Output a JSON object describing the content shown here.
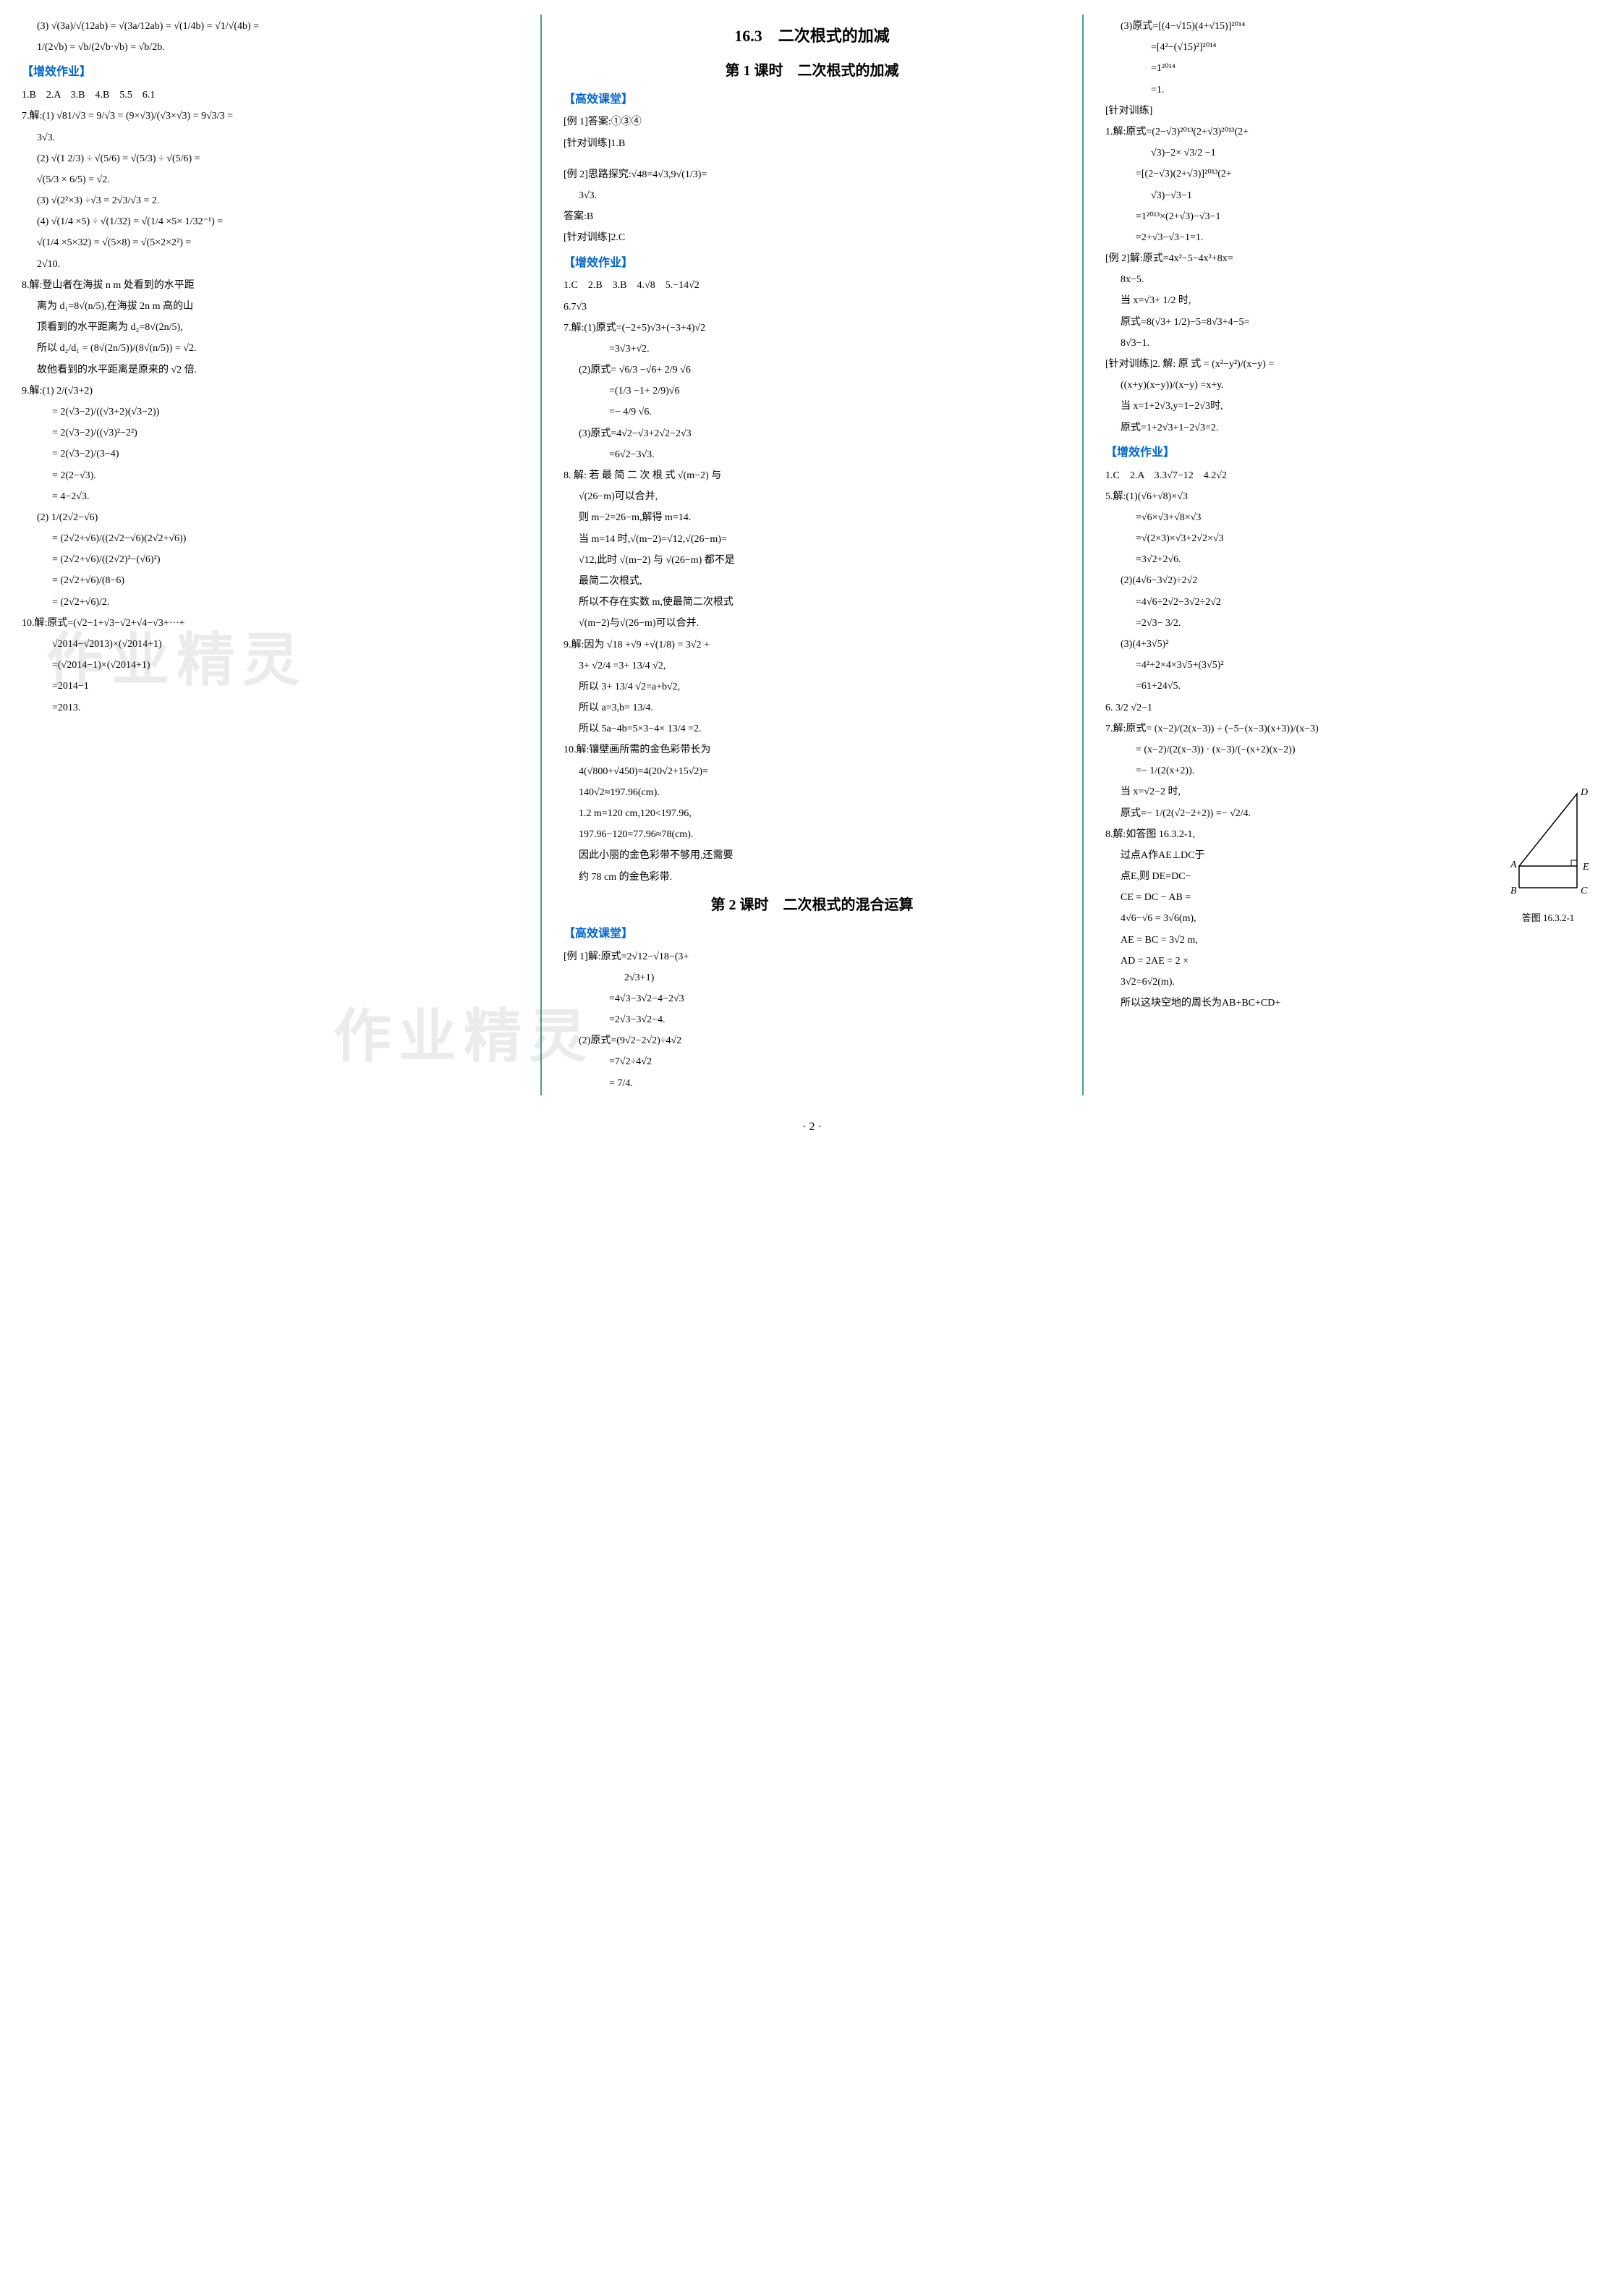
{
  "pageNumber": "· 2 ·",
  "watermarks": {
    "wm1": "作业精灵",
    "wm2": "作业精灵"
  },
  "column1": {
    "items": [
      {
        "text": "(3) √(3a)/√(12ab) = √(3a/12ab) = √(1/4b) = √1/√(4b) =",
        "indent": 1
      },
      {
        "text": "1/(2√b) = √b/(2√b·√b) = √b/2b.",
        "indent": 1
      },
      {
        "text": "【增效作业】",
        "class": "blue-heading"
      },
      {
        "text": "1.B　2.A　3.B　4.B　5.5　6.1",
        "class": "answer-line"
      },
      {
        "text": "7.解:(1) √81/√3 = 9/√3 = (9×√3)/(√3×√3) = 9√3/3 =",
        "class": "item"
      },
      {
        "text": "3√3.",
        "indent": 1
      },
      {
        "text": "(2) √(1 2/3) ÷ √(5/6) = √(5/3) ÷ √(5/6) =",
        "indent": 1
      },
      {
        "text": "√(5/3 × 6/5) = √2.",
        "indent": 1
      },
      {
        "text": "(3) √(2²×3) ÷√3 = 2√3/√3 = 2.",
        "indent": 1
      },
      {
        "text": "(4) √(1/4 ×5) ÷ √(1/32) = √(1/4 ×5× 1/32⁻¹) =",
        "indent": 1
      },
      {
        "text": "√(1/4 ×5×32) = √(5×8) = √(5×2×2²) =",
        "indent": 1
      },
      {
        "text": "2√10.",
        "indent": 1
      },
      {
        "text": "8.解:登山者在海拔 n m 处看到的水平距",
        "class": "item"
      },
      {
        "text": "离为 d₁=8√(n/5),在海拔 2n m 高的山",
        "indent": 1
      },
      {
        "text": "顶看到的水平距离为 d₂=8√(2n/5),",
        "indent": 1
      },
      {
        "text": "所以 d₂/d₁ = (8√(2n/5))/(8√(n/5)) = √2.",
        "indent": 1
      },
      {
        "text": "故他看到的水平距离是原来的 √2 倍.",
        "indent": 1
      },
      {
        "text": "9.解:(1) 2/(√3+2)",
        "class": "item"
      },
      {
        "text": "= 2(√3−2)/((√3+2)(√3−2))",
        "indent": 2
      },
      {
        "text": "= 2(√3−2)/((√3)²−2²)",
        "indent": 2
      },
      {
        "text": "= 2(√3−2)/(3−4)",
        "indent": 2
      },
      {
        "text": "= 2(2−√3).",
        "indent": 2
      },
      {
        "text": "= 4−2√3.",
        "indent": 2
      },
      {
        "text": "(2) 1/(2√2−√6)",
        "indent": 1
      },
      {
        "text": "= (2√2+√6)/((2√2−√6)(2√2+√6))",
        "indent": 2
      },
      {
        "text": "= (2√2+√6)/((2√2)²−(√6)²)",
        "indent": 2
      },
      {
        "text": "= (2√2+√6)/(8−6)",
        "indent": 2
      },
      {
        "text": "= (2√2+√6)/2.",
        "indent": 2
      },
      {
        "text": "10.解:原式=(√2−1+√3−√2+√4−√3+···+",
        "class": "item"
      },
      {
        "text": "√2014−√2013)×(√2014+1)",
        "indent": 2
      },
      {
        "text": "=(√2014−1)×(√2014+1)",
        "indent": 2
      },
      {
        "text": "=2014−1",
        "indent": 2
      },
      {
        "text": "=2013.",
        "indent": 2
      }
    ]
  },
  "column2": {
    "titleMajor": "16.3　二次根式的加减",
    "titleSub": "第 1 课时　二次根式的加减",
    "items": [
      {
        "text": "【高效课堂】",
        "class": "blue-heading"
      },
      {
        "text": "[例 1]答案:①③④",
        "class": "item"
      },
      {
        "text": "[针对训练]1.B",
        "class": "item"
      },
      {
        "text": "",
        "class": "spacer"
      },
      {
        "text": "[例 2]思路探究:√48=4√3,9√(1/3)=",
        "class": "item"
      },
      {
        "text": "3√3.",
        "indent": 1
      },
      {
        "text": "答案:B",
        "class": "item"
      },
      {
        "text": "[针对训练]2.C",
        "class": "item"
      },
      {
        "text": "【增效作业】",
        "class": "blue-heading"
      },
      {
        "text": "1.C　2.B　3.B　4.√8　5.−14√2",
        "class": "answer-line"
      },
      {
        "text": "6.7√3",
        "class": "answer-line"
      },
      {
        "text": "7.解:(1)原式=(−2+5)√3+(−3+4)√2",
        "class": "item"
      },
      {
        "text": "=3√3+√2.",
        "indent": 3
      },
      {
        "text": "(2)原式= √6/3 −√6+ 2/9 √6",
        "indent": 1
      },
      {
        "text": "=(1/3 −1+ 2/9)√6",
        "indent": 3
      },
      {
        "text": "=− 4/9 √6.",
        "indent": 3
      },
      {
        "text": "(3)原式=4√2−√3+2√2−2√3",
        "indent": 1
      },
      {
        "text": "=6√2−3√3.",
        "indent": 3
      },
      {
        "text": "8. 解: 若 最 简 二 次 根 式 √(m−2) 与",
        "class": "item"
      },
      {
        "text": "√(26−m)可以合并,",
        "indent": 1
      },
      {
        "text": "则 m−2=26−m,解得 m=14.",
        "indent": 1
      },
      {
        "text": "当 m=14 时,√(m−2)=√12,√(26−m)=",
        "indent": 1
      },
      {
        "text": "√12,此时 √(m−2) 与 √(26−m) 都不是",
        "indent": 1
      },
      {
        "text": "最简二次根式,",
        "indent": 1
      },
      {
        "text": "所以不存在实数 m,使最简二次根式",
        "indent": 1
      },
      {
        "text": "√(m−2)与√(26−m)可以合并.",
        "indent": 1
      },
      {
        "text": "9.解:因为 √18 +√9 +√(1/8) = 3√2 +",
        "class": "item"
      },
      {
        "text": "3+ √2/4 =3+ 13/4 √2,",
        "indent": 1
      },
      {
        "text": "所以 3+ 13/4 √2=a+b√2,",
        "indent": 1
      },
      {
        "text": "所以 a=3,b= 13/4.",
        "indent": 1
      },
      {
        "text": "所以 5a−4b=5×3−4× 13/4 =2.",
        "indent": 1
      },
      {
        "text": "10.解:镶壁画所需的金色彩带长为",
        "class": "item"
      },
      {
        "text": "4(√800+√450)=4(20√2+15√2)=",
        "indent": 1
      },
      {
        "text": "140√2≈197.96(cm).",
        "indent": 1
      },
      {
        "text": "1.2 m=120 cm,120<197.96,",
        "indent": 1
      },
      {
        "text": "197.96−120=77.96≈78(cm).",
        "indent": 1
      },
      {
        "text": "因此小丽的金色彩带不够用,还需要",
        "indent": 1
      },
      {
        "text": "约 78 cm 的金色彩带.",
        "indent": 1
      }
    ],
    "titleSub2": "第 2 课时　二次根式的混合运算",
    "items2": [
      {
        "text": "【高效课堂】",
        "class": "blue-heading"
      },
      {
        "text": "[例 1]解:原式=2√12−√18−(3+",
        "class": "item"
      },
      {
        "text": "2√3+1)",
        "indent": 4
      },
      {
        "text": "=4√3−3√2−4−2√3",
        "indent": 3
      },
      {
        "text": "=2√3−3√2−4.",
        "indent": 3
      },
      {
        "text": "(2)原式=(9√2−2√2)÷4√2",
        "indent": 1
      },
      {
        "text": "=7√2÷4√2",
        "indent": 3
      },
      {
        "text": "= 7/4.",
        "indent": 3
      }
    ]
  },
  "column3": {
    "items": [
      {
        "text": "(3)原式=[(4−√15)(4+√15)]²⁰¹⁴",
        "indent": 1
      },
      {
        "text": "=[4²−(√15)²]²⁰¹⁴",
        "indent": 3
      },
      {
        "text": "=1²⁰¹⁴",
        "indent": 3
      },
      {
        "text": "=1.",
        "indent": 3
      },
      {
        "text": "[针对训练]",
        "class": "item"
      },
      {
        "text": "1.解:原式=(2−√3)²⁰¹³(2+√3)²⁰¹³(2+",
        "class": "item"
      },
      {
        "text": "√3)−2× √3/2 −1",
        "indent": 3
      },
      {
        "text": "=[(2−√3)(2+√3)]²⁰¹³(2+",
        "indent": 2
      },
      {
        "text": "√3)−√3−1",
        "indent": 3
      },
      {
        "text": "=1²⁰¹³×(2+√3)−√3−1",
        "indent": 2
      },
      {
        "text": "=2+√3−√3−1=1.",
        "indent": 2
      },
      {
        "text": "[例 2]解:原式=4x²−5−4x²+8x=",
        "class": "item"
      },
      {
        "text": "8x−5.",
        "indent": 1
      },
      {
        "text": "当 x=√3+ 1/2 时,",
        "indent": 1
      },
      {
        "text": "原式=8(√3+ 1/2)−5=8√3+4−5=",
        "indent": 1
      },
      {
        "text": "8√3−1.",
        "indent": 1
      },
      {
        "text": "[针对训练]2. 解: 原 式 = (x²−y²)/(x−y) =",
        "class": "item"
      },
      {
        "text": "((x+y)(x−y))/(x−y) =x+y.",
        "indent": 1
      },
      {
        "text": "当 x=1+2√3,y=1−2√3时,",
        "indent": 1
      },
      {
        "text": "原式=1+2√3+1−2√3=2.",
        "indent": 1
      },
      {
        "text": "【增效作业】",
        "class": "blue-heading"
      },
      {
        "text": "1.C　2.A　3.3√7−12　4.2√2",
        "class": "answer-line"
      },
      {
        "text": "5.解:(1)(√6+√8)×√3",
        "class": "item"
      },
      {
        "text": "=√6×√3+√8×√3",
        "indent": 2
      },
      {
        "text": "=√(2×3)×√3+2√2×√3",
        "indent": 2
      },
      {
        "text": "=3√2+2√6.",
        "indent": 2
      },
      {
        "text": "(2)(4√6−3√2)÷2√2",
        "indent": 1
      },
      {
        "text": "=4√6÷2√2−3√2÷2√2",
        "indent": 2
      },
      {
        "text": "=2√3− 3/2.",
        "indent": 2
      },
      {
        "text": "(3)(4+3√5)²",
        "indent": 1
      },
      {
        "text": "=4²+2×4×3√5+(3√5)²",
        "indent": 2
      },
      {
        "text": "=61+24√5.",
        "indent": 2
      },
      {
        "text": "6. 3/2 √2−1",
        "class": "item"
      },
      {
        "text": "7.解:原式= (x−2)/(2(x−3)) ÷ (−5−(x−3)(x+3))/(x−3)",
        "class": "item"
      },
      {
        "text": "= (x−2)/(2(x−3)) · (x−3)/(−(x+2)(x−2))",
        "indent": 2
      },
      {
        "text": "=− 1/(2(x+2)).",
        "indent": 2
      },
      {
        "text": "当 x=√2−2 时,",
        "indent": 1
      },
      {
        "text": "原式=− 1/(2(√2−2+2)) =− √2/4.",
        "indent": 1
      },
      {
        "text": "8.解:如答图 16.3.2-1,",
        "class": "item"
      },
      {
        "text": "过点A作AE⊥DC于",
        "indent": 1
      },
      {
        "text": "点E,则 DE=DC−",
        "indent": 1
      },
      {
        "text": "CE = DC − AB =",
        "indent": 1
      },
      {
        "text": "4√6−√6 = 3√6(m),",
        "indent": 1
      },
      {
        "text": "AE = BC = 3√2 m,",
        "indent": 1
      },
      {
        "text": "AD = 2AE = 2 ×",
        "indent": 1
      },
      {
        "text": "3√2=6√2(m).",
        "indent": 1
      },
      {
        "text": "所以这块空地的周长为AB+BC+CD+",
        "indent": 1
      }
    ],
    "diagram": {
      "label": "答图 16.3.2-1",
      "points": {
        "A": "A",
        "B": "B",
        "C": "C",
        "D": "D",
        "E": "E"
      },
      "width": 140,
      "height": 160
    }
  }
}
